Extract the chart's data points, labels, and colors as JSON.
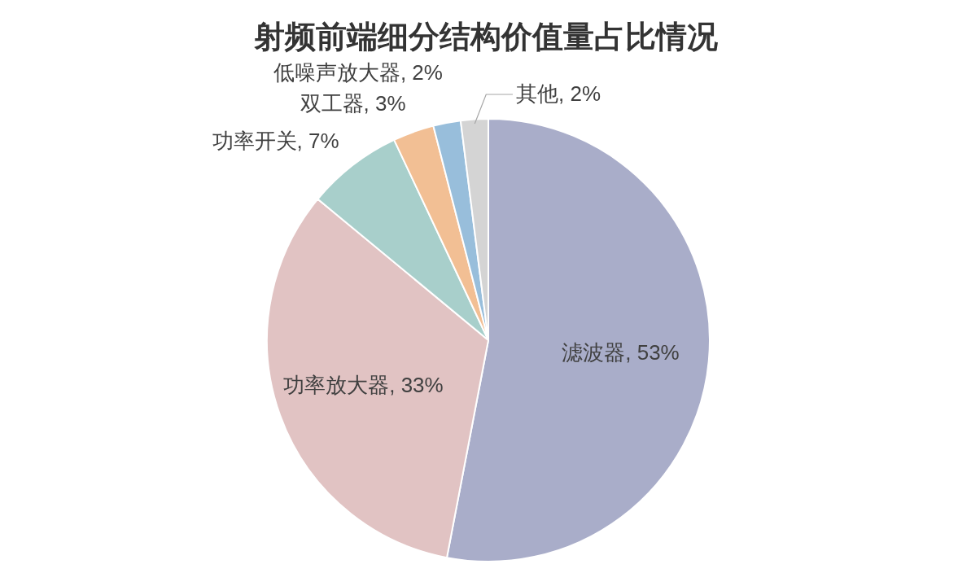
{
  "chart_data": {
    "type": "pie",
    "title": "射频前端细分结构价值量占比情况",
    "categories": [
      "滤波器",
      "功率放大器",
      "功率开关",
      "双工器",
      "低噪声放大器",
      "其他"
    ],
    "values": [
      53,
      33,
      7,
      3,
      2,
      2
    ],
    "colors": [
      "#a9adc9",
      "#e1c3c3",
      "#a8cfcb",
      "#f2bf94",
      "#98bedb",
      "#d4d4d4"
    ],
    "value_labels": [
      "53%",
      "33%",
      "7%",
      "3%",
      "2%",
      "2%"
    ]
  }
}
